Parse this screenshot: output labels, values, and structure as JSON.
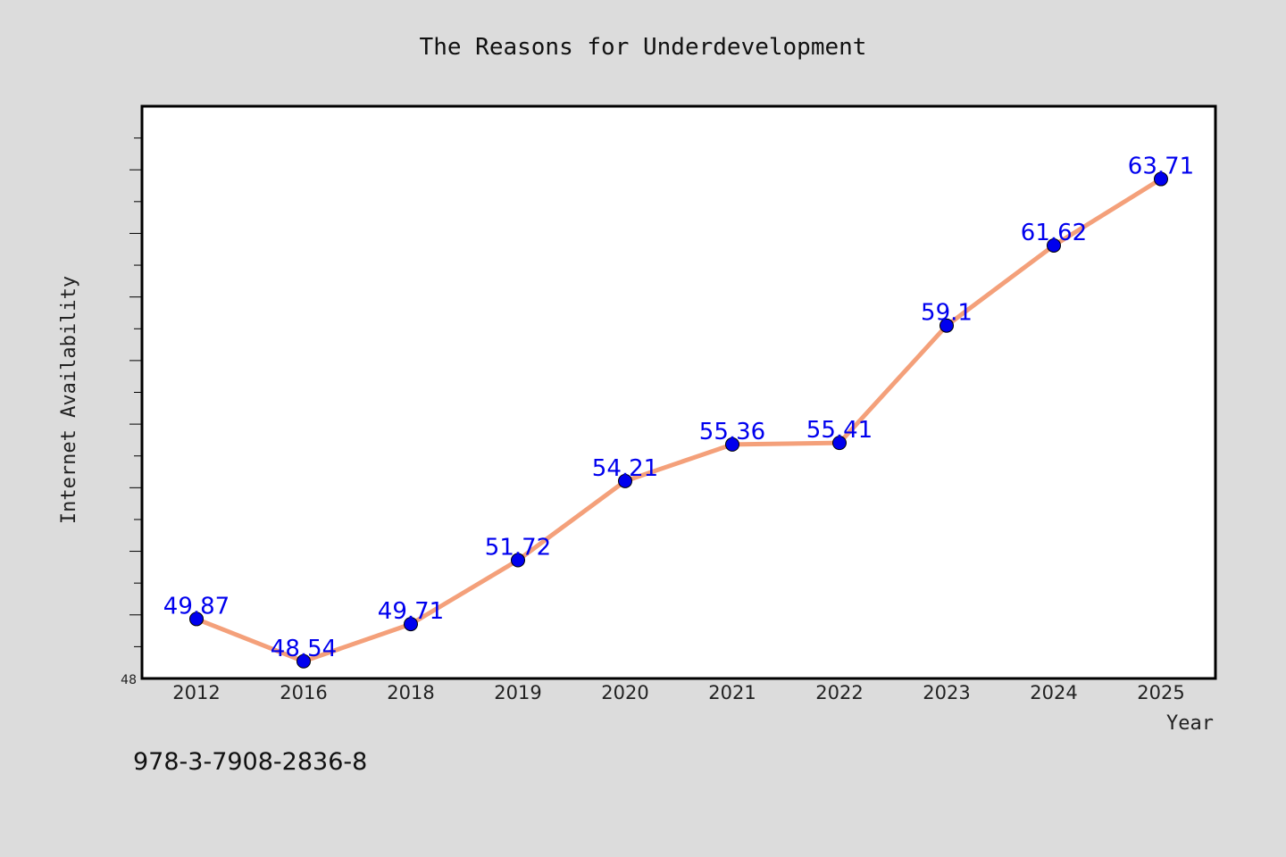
{
  "chart_data": {
    "type": "line",
    "title": "The Reasons for Underdevelopment",
    "xlabel": "Year",
    "ylabel": "Internet Availability",
    "categories": [
      "2012",
      "2016",
      "2018",
      "2019",
      "2020",
      "2021",
      "2022",
      "2023",
      "2024",
      "2025"
    ],
    "values": [
      49.87,
      48.54,
      49.71,
      51.72,
      54.21,
      55.36,
      55.41,
      59.1,
      61.62,
      63.71
    ],
    "data_labels": [
      "49.87",
      "48.54",
      "49.71",
      "51.72",
      "54.21",
      "55.36",
      "55.41",
      "59.1",
      "61.62",
      "63.71"
    ],
    "ylim": [
      48,
      66
    ],
    "y_tick_label": "48",
    "grid": false,
    "legend": "none",
    "colors": {
      "line": "#f4a07a",
      "marker": "#0000ee",
      "labels": "#0000ee",
      "plot_background": "#ffffff",
      "page_background": "#dcdcdc"
    }
  },
  "footer": {
    "isbn": "978-3-7908-2836-8"
  }
}
